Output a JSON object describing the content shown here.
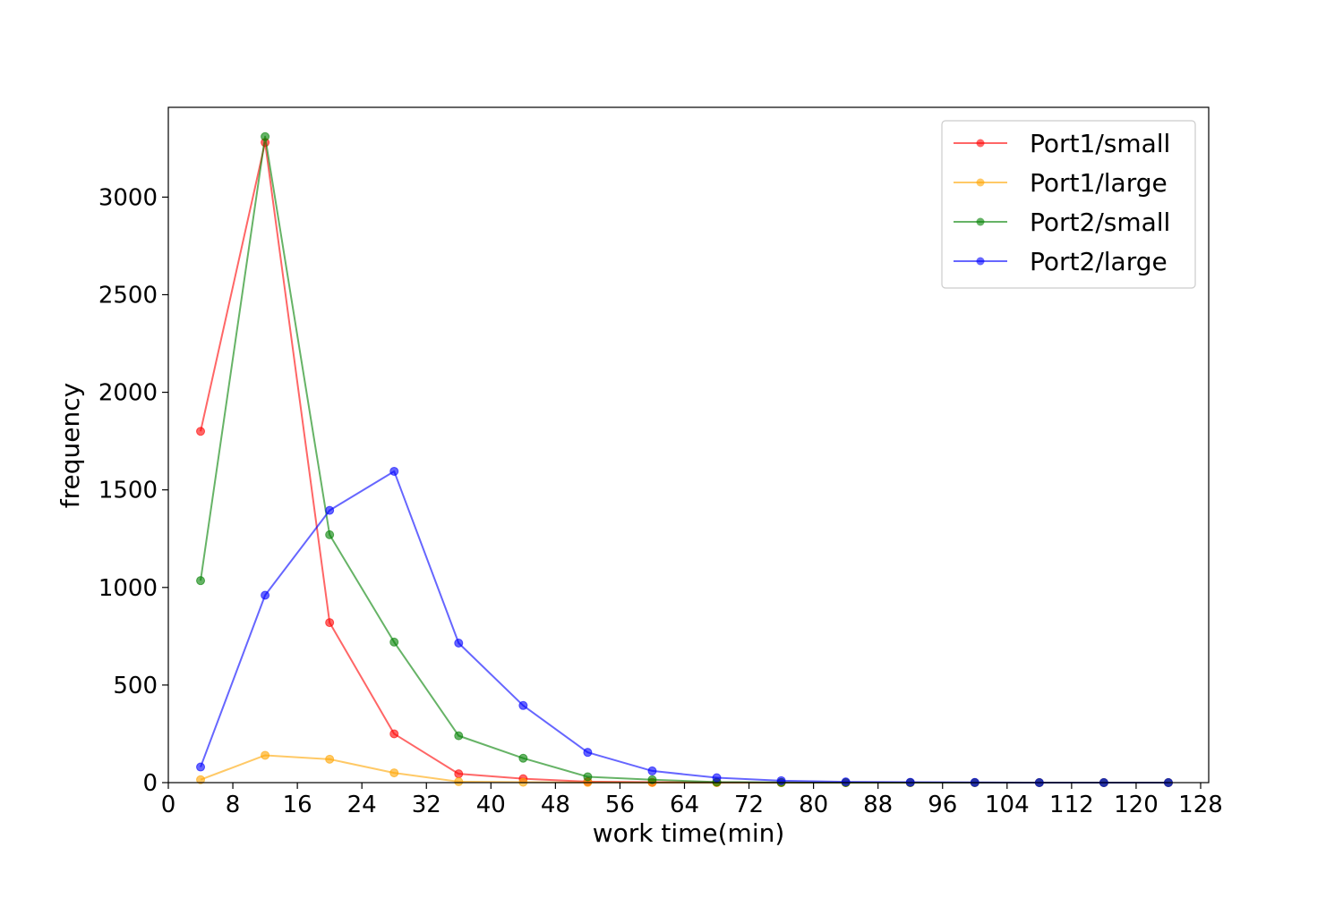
{
  "chart_data": {
    "type": "line",
    "title": "",
    "xlabel": "work time(min)",
    "ylabel": "frequency",
    "xlim": [
      0,
      129
    ],
    "ylim": [
      0,
      3460
    ],
    "x_ticks": [
      0,
      8,
      16,
      24,
      32,
      40,
      48,
      56,
      64,
      72,
      80,
      88,
      96,
      104,
      112,
      120,
      128
    ],
    "y_ticks": [
      0,
      500,
      1000,
      1500,
      2000,
      2500,
      3000
    ],
    "grid": false,
    "legend_position": "top-right",
    "x": [
      4,
      12,
      20,
      28,
      36,
      44,
      52,
      60,
      68,
      76,
      84,
      92,
      100,
      108,
      116,
      124
    ],
    "series": [
      {
        "name": "Port1/small",
        "color": "#ff0000",
        "values": [
          1800,
          3280,
          820,
          250,
          45,
          20,
          5,
          2,
          1,
          0,
          0,
          0,
          0,
          0,
          0,
          0
        ]
      },
      {
        "name": "Port1/large",
        "color": "#ffa500",
        "values": [
          15,
          140,
          120,
          50,
          5,
          2,
          1,
          0,
          0,
          0,
          0,
          0,
          0,
          0,
          0,
          0
        ]
      },
      {
        "name": "Port2/small",
        "color": "#008000",
        "values": [
          1035,
          3310,
          1270,
          720,
          240,
          125,
          30,
          15,
          3,
          1,
          0,
          0,
          0,
          0,
          0,
          0
        ]
      },
      {
        "name": "Port2/large",
        "color": "#0000ff",
        "values": [
          80,
          960,
          1395,
          1595,
          715,
          395,
          155,
          60,
          25,
          10,
          4,
          2,
          1,
          0,
          0,
          0
        ]
      }
    ]
  }
}
